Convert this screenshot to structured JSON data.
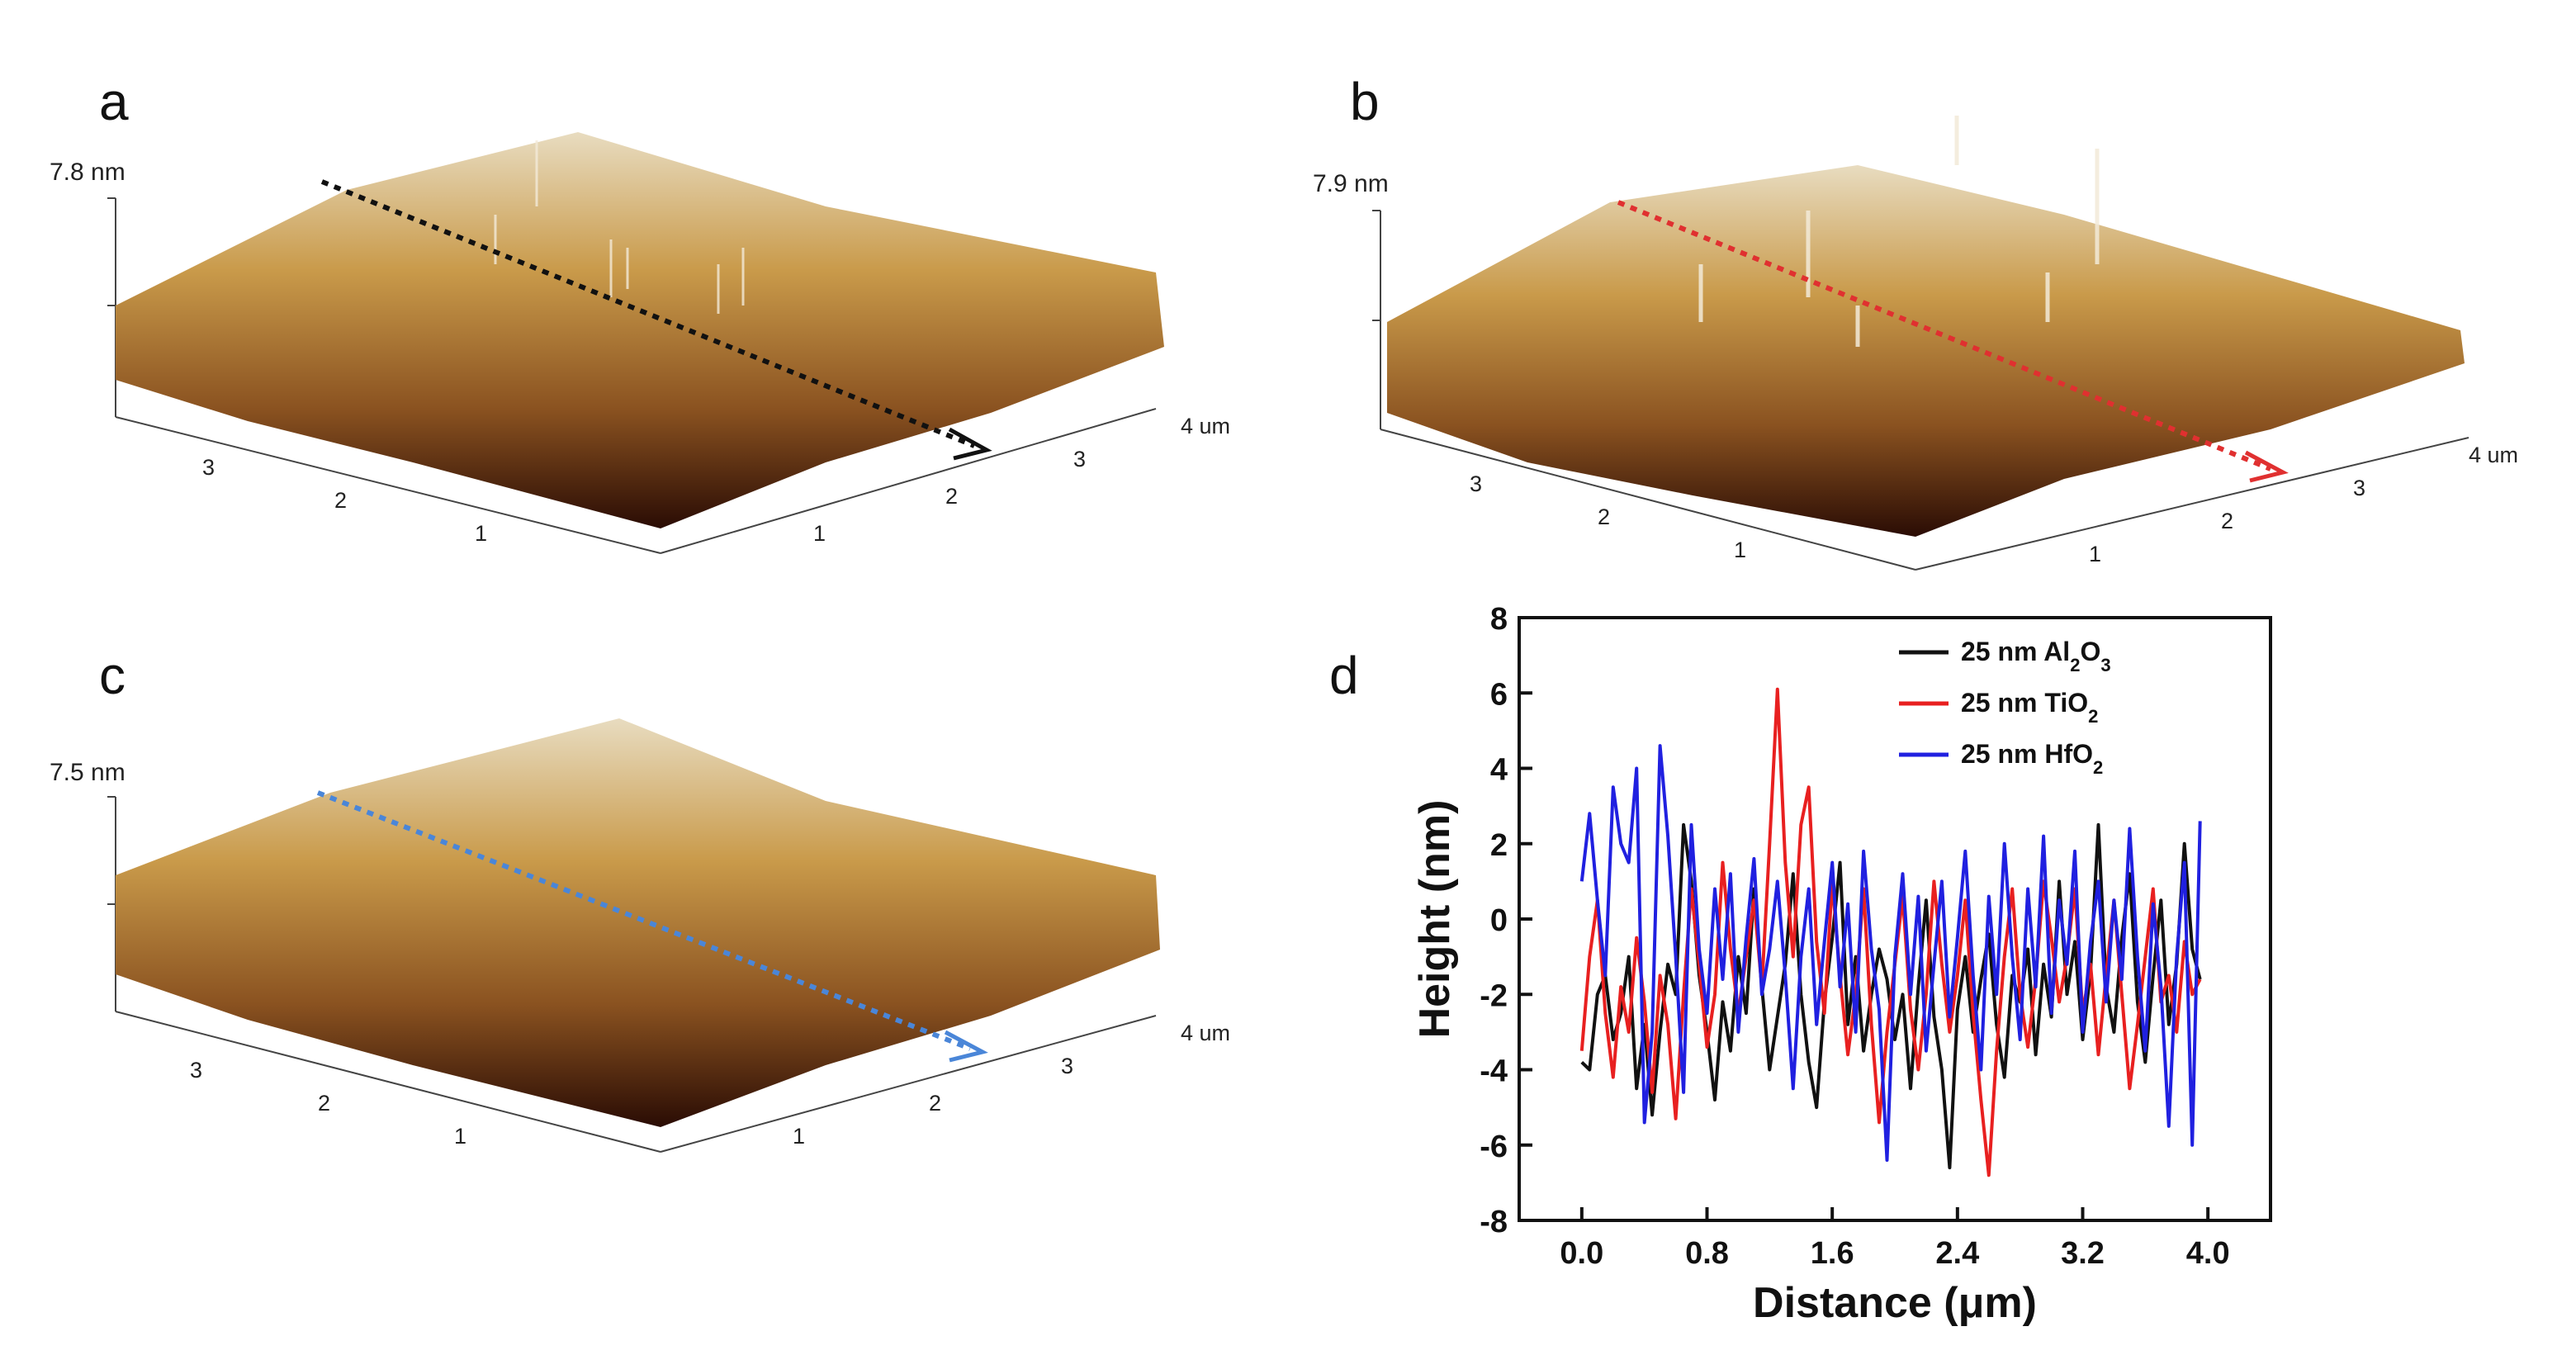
{
  "panels": [
    {
      "label": "a",
      "max_height": "7.8 nm",
      "arrow_color": "#111111",
      "x_ticks": [
        "1",
        "2",
        "3",
        "4 um"
      ],
      "y_ticks": [
        "1",
        "2",
        "3"
      ]
    },
    {
      "label": "b",
      "max_height": "7.9 nm",
      "arrow_color": "#e03030",
      "x_ticks": [
        "1",
        "2",
        "3",
        "4 um"
      ],
      "y_ticks": [
        "1",
        "2",
        "3"
      ]
    },
    {
      "label": "c",
      "max_height": "7.5 nm",
      "arrow_color": "#4a86d8",
      "x_ticks": [
        "1",
        "2",
        "3",
        "4 um"
      ],
      "y_ticks": [
        "1",
        "2",
        "3"
      ]
    }
  ],
  "chart_data": {
    "type": "line",
    "panel_label": "d",
    "xlabel": "Distance (μm)",
    "ylabel": "Height (nm)",
    "xlim": [
      -0.4,
      4.4
    ],
    "ylim": [
      -8,
      8
    ],
    "x_ticks": [
      "0.0",
      "0.8",
      "1.6",
      "2.4",
      "3.2",
      "4.0"
    ],
    "y_ticks": [
      "-8",
      "-6",
      "-4",
      "-2",
      "0",
      "2",
      "4",
      "6",
      "8"
    ],
    "series": [
      {
        "name": "25 nm Al2O3",
        "label_main": "25 nm  Al",
        "sub1": "2",
        "mid": "O",
        "sub2": "3",
        "color": "#111111",
        "x": [
          0.0,
          0.05,
          0.1,
          0.15,
          0.2,
          0.25,
          0.3,
          0.35,
          0.4,
          0.45,
          0.5,
          0.55,
          0.6,
          0.65,
          0.7,
          0.75,
          0.8,
          0.85,
          0.9,
          0.95,
          1.0,
          1.05,
          1.1,
          1.15,
          1.2,
          1.25,
          1.3,
          1.35,
          1.4,
          1.45,
          1.5,
          1.55,
          1.6,
          1.65,
          1.7,
          1.75,
          1.8,
          1.85,
          1.9,
          1.95,
          2.0,
          2.05,
          2.1,
          2.15,
          2.2,
          2.25,
          2.3,
          2.35,
          2.4,
          2.45,
          2.5,
          2.55,
          2.6,
          2.65,
          2.7,
          2.75,
          2.8,
          2.85,
          2.9,
          2.95,
          3.0,
          3.05,
          3.1,
          3.15,
          3.2,
          3.25,
          3.3,
          3.35,
          3.4,
          3.45,
          3.5,
          3.55,
          3.6,
          3.65,
          3.7,
          3.75,
          3.8,
          3.85,
          3.9,
          3.95
        ],
        "y": [
          -3.8,
          -4.0,
          -2.0,
          -1.5,
          -3.2,
          -2.5,
          -1.0,
          -4.5,
          -2.8,
          -5.2,
          -3.0,
          -1.2,
          -2.0,
          2.5,
          1.0,
          -1.5,
          -3.0,
          -4.8,
          -2.2,
          -3.5,
          -1.0,
          -2.5,
          0.8,
          -1.8,
          -4.0,
          -2.6,
          -1.2,
          1.2,
          -2.0,
          -3.8,
          -5.0,
          -2.2,
          -0.5,
          1.5,
          -2.8,
          -1.0,
          -3.5,
          -2.0,
          -0.8,
          -1.6,
          -3.2,
          -2.0,
          -4.5,
          -1.8,
          0.5,
          -2.6,
          -4.0,
          -6.6,
          -2.4,
          -1.0,
          -3.0,
          -1.6,
          -0.4,
          -2.8,
          -4.2,
          -1.5,
          -2.2,
          -0.8,
          -3.6,
          -1.2,
          -2.6,
          1.0,
          -2.0,
          -0.6,
          -3.2,
          -1.4,
          2.5,
          -1.8,
          -3.0,
          -0.5,
          1.2,
          -2.2,
          -3.8,
          -1.5,
          0.5,
          -2.8,
          -1.2,
          2.0,
          -0.8,
          -1.6
        ]
      },
      {
        "name": "25 nm TiO2",
        "label_main": "25 nm  TiO",
        "sub1": "2",
        "mid": "",
        "sub2": "",
        "color": "#e82020",
        "x": [
          0.0,
          0.05,
          0.1,
          0.15,
          0.2,
          0.25,
          0.3,
          0.35,
          0.4,
          0.45,
          0.5,
          0.55,
          0.6,
          0.65,
          0.7,
          0.75,
          0.8,
          0.85,
          0.9,
          0.95,
          1.0,
          1.05,
          1.1,
          1.15,
          1.2,
          1.25,
          1.3,
          1.35,
          1.4,
          1.45,
          1.5,
          1.55,
          1.6,
          1.65,
          1.7,
          1.75,
          1.8,
          1.85,
          1.9,
          1.95,
          2.0,
          2.05,
          2.1,
          2.15,
          2.2,
          2.25,
          2.3,
          2.35,
          2.4,
          2.45,
          2.5,
          2.55,
          2.6,
          2.65,
          2.7,
          2.75,
          2.8,
          2.85,
          2.9,
          2.95,
          3.0,
          3.05,
          3.1,
          3.15,
          3.2,
          3.25,
          3.3,
          3.35,
          3.4,
          3.45,
          3.5,
          3.55,
          3.6,
          3.65,
          3.7,
          3.75,
          3.8,
          3.85,
          3.9,
          3.95
        ],
        "y": [
          -3.5,
          -1.0,
          0.5,
          -2.5,
          -4.2,
          -1.8,
          -3.0,
          -0.5,
          -2.2,
          -4.6,
          -1.5,
          -2.8,
          -5.3,
          -2.0,
          0.8,
          -1.2,
          -3.4,
          -2.0,
          1.5,
          -0.8,
          -2.5,
          -1.0,
          0.5,
          -1.8,
          2.0,
          6.1,
          1.5,
          -1.0,
          2.5,
          3.5,
          -0.6,
          -2.5,
          1.0,
          -1.5,
          -3.6,
          -2.0,
          0.8,
          -2.8,
          -5.4,
          -3.0,
          -1.2,
          0.6,
          -2.4,
          -4.0,
          -2.0,
          1.0,
          -1.2,
          -3.0,
          -1.5,
          0.5,
          -2.5,
          -4.8,
          -6.8,
          -3.5,
          -1.0,
          0.8,
          -2.0,
          -3.4,
          -1.6,
          1.0,
          -0.5,
          -2.2,
          -1.0,
          0.8,
          -2.5,
          -1.2,
          -3.6,
          -1.5,
          0.5,
          -2.0,
          -4.5,
          -2.8,
          -1.0,
          0.8,
          -2.2,
          -1.5,
          -3.0,
          -0.6,
          -2.0,
          -1.6
        ]
      },
      {
        "name": "25 nm HfO2",
        "label_main": "25 nm  HfO",
        "sub1": "2",
        "mid": "",
        "sub2": "",
        "color": "#2020e0",
        "x": [
          0.0,
          0.05,
          0.1,
          0.15,
          0.2,
          0.25,
          0.3,
          0.35,
          0.4,
          0.45,
          0.5,
          0.55,
          0.6,
          0.65,
          0.7,
          0.75,
          0.8,
          0.85,
          0.9,
          0.95,
          1.0,
          1.05,
          1.1,
          1.15,
          1.2,
          1.25,
          1.3,
          1.35,
          1.4,
          1.45,
          1.5,
          1.55,
          1.6,
          1.65,
          1.7,
          1.75,
          1.8,
          1.85,
          1.9,
          1.95,
          2.0,
          2.05,
          2.1,
          2.15,
          2.2,
          2.25,
          2.3,
          2.35,
          2.4,
          2.45,
          2.5,
          2.55,
          2.6,
          2.65,
          2.7,
          2.75,
          2.8,
          2.85,
          2.9,
          2.95,
          3.0,
          3.05,
          3.1,
          3.15,
          3.2,
          3.25,
          3.3,
          3.35,
          3.4,
          3.45,
          3.5,
          3.55,
          3.6,
          3.65,
          3.7,
          3.75,
          3.8,
          3.85,
          3.9,
          3.95
        ],
        "y": [
          1.0,
          2.8,
          0.5,
          -1.5,
          3.5,
          2.0,
          1.5,
          4.0,
          -5.4,
          -3.0,
          4.6,
          2.2,
          -1.0,
          -4.6,
          2.5,
          -0.8,
          -2.5,
          0.8,
          -1.6,
          1.2,
          -3.0,
          -0.5,
          1.6,
          -2.0,
          -0.8,
          1.0,
          -1.5,
          -4.5,
          -1.0,
          0.8,
          -2.8,
          -0.6,
          1.5,
          -1.8,
          0.4,
          -3.0,
          1.8,
          -0.8,
          -2.4,
          -6.4,
          -1.0,
          1.2,
          -2.0,
          0.6,
          -3.5,
          -1.2,
          1.0,
          -2.6,
          -0.5,
          1.8,
          -1.5,
          -4.0,
          0.6,
          -2.0,
          2.0,
          -1.0,
          -3.2,
          0.8,
          -1.8,
          2.2,
          -2.5,
          0.5,
          -1.2,
          1.8,
          -3.0,
          -0.6,
          1.0,
          -2.2,
          0.5,
          -1.6,
          2.4,
          -1.0,
          -3.5,
          0.4,
          -1.8,
          -5.5,
          -1.0,
          1.5,
          -6.0,
          2.6
        ]
      }
    ]
  }
}
